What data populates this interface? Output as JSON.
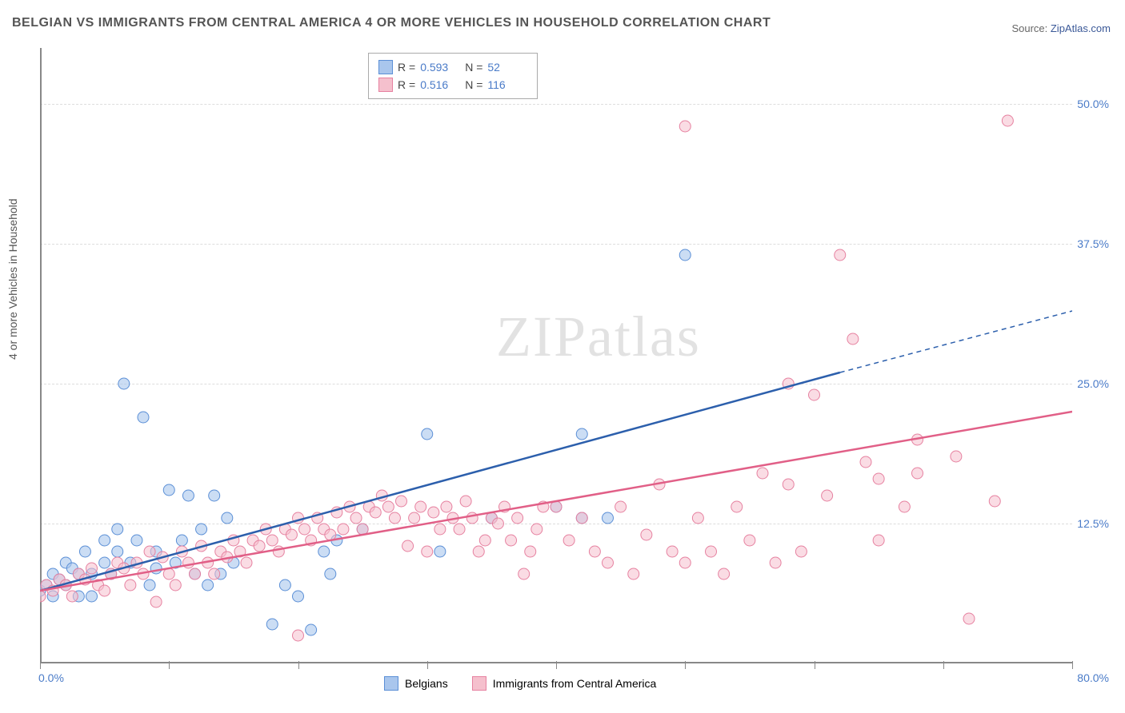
{
  "title": "BELGIAN VS IMMIGRANTS FROM CENTRAL AMERICA 4 OR MORE VEHICLES IN HOUSEHOLD CORRELATION CHART",
  "source_label": "Source: ",
  "source_name": "ZipAtlas.com",
  "y_axis_label": "4 or more Vehicles in Household",
  "watermark_zip": "ZIP",
  "watermark_atlas": "atlas",
  "chart": {
    "type": "scatter",
    "xlim": [
      0,
      80
    ],
    "ylim": [
      0,
      55
    ],
    "x_tick_min_label": "0.0%",
    "x_tick_max_label": "80.0%",
    "x_tick_positions": [
      0,
      10,
      20,
      30,
      40,
      50,
      60,
      70,
      80
    ],
    "y_ticks": [
      {
        "value": 12.5,
        "label": "12.5%"
      },
      {
        "value": 25.0,
        "label": "25.0%"
      },
      {
        "value": 37.5,
        "label": "37.5%"
      },
      {
        "value": 50.0,
        "label": "50.0%"
      }
    ],
    "background_color": "#ffffff",
    "grid_color": "#dddddd",
    "axis_color": "#888888",
    "tick_label_color": "#4a7bc8",
    "series": [
      {
        "name": "Belgians",
        "fill_color": "#a9c6ed",
        "stroke_color": "#5b8fd6",
        "line_color": "#2c5fac",
        "marker_radius": 7,
        "marker_opacity": 0.6,
        "r_value": "0.593",
        "n_value": "52",
        "trend": {
          "x1": 0,
          "y1": 6.5,
          "x2": 62,
          "y2": 26,
          "dash_x2": 80,
          "dash_y2": 31.5
        },
        "points": [
          [
            0,
            6.5
          ],
          [
            0.5,
            7
          ],
          [
            1,
            6
          ],
          [
            1,
            8
          ],
          [
            1.5,
            7.5
          ],
          [
            2,
            7
          ],
          [
            2,
            9
          ],
          [
            2.5,
            8.5
          ],
          [
            3,
            6
          ],
          [
            3,
            8
          ],
          [
            3.5,
            10
          ],
          [
            4,
            8
          ],
          [
            4,
            6
          ],
          [
            5,
            9
          ],
          [
            5,
            11
          ],
          [
            5.5,
            8
          ],
          [
            6,
            10
          ],
          [
            6,
            12
          ],
          [
            6.5,
            25
          ],
          [
            7,
            9
          ],
          [
            7.5,
            11
          ],
          [
            8,
            22
          ],
          [
            8.5,
            7
          ],
          [
            9,
            10
          ],
          [
            9,
            8.5
          ],
          [
            10,
            15.5
          ],
          [
            10.5,
            9
          ],
          [
            11,
            11
          ],
          [
            11.5,
            15
          ],
          [
            12,
            8
          ],
          [
            12.5,
            12
          ],
          [
            13,
            7
          ],
          [
            13.5,
            15
          ],
          [
            14,
            8
          ],
          [
            14.5,
            13
          ],
          [
            15,
            9
          ],
          [
            18,
            3.5
          ],
          [
            19,
            7
          ],
          [
            20,
            6
          ],
          [
            21,
            3
          ],
          [
            22,
            10
          ],
          [
            22.5,
            8
          ],
          [
            23,
            11
          ],
          [
            25,
            12
          ],
          [
            30,
            20.5
          ],
          [
            31,
            10
          ],
          [
            35,
            13
          ],
          [
            40,
            14
          ],
          [
            42,
            20.5
          ],
          [
            42,
            13
          ],
          [
            50,
            36.5
          ],
          [
            44,
            13
          ]
        ]
      },
      {
        "name": "Immigrants from Central America",
        "fill_color": "#f5c0cd",
        "stroke_color": "#e681a0",
        "line_color": "#e15f87",
        "marker_radius": 7,
        "marker_opacity": 0.55,
        "r_value": "0.516",
        "n_value": "116",
        "trend": {
          "x1": 0,
          "y1": 6.5,
          "x2": 80,
          "y2": 22.5
        },
        "points": [
          [
            0,
            6
          ],
          [
            0.5,
            7
          ],
          [
            1,
            6.5
          ],
          [
            1.5,
            7.5
          ],
          [
            2,
            7
          ],
          [
            2.5,
            6
          ],
          [
            3,
            8
          ],
          [
            3.5,
            7.5
          ],
          [
            4,
            8.5
          ],
          [
            4.5,
            7
          ],
          [
            5,
            6.5
          ],
          [
            5.5,
            8
          ],
          [
            6,
            9
          ],
          [
            6.5,
            8.5
          ],
          [
            7,
            7
          ],
          [
            7.5,
            9
          ],
          [
            8,
            8
          ],
          [
            8.5,
            10
          ],
          [
            9,
            5.5
          ],
          [
            9.5,
            9.5
          ],
          [
            10,
            8
          ],
          [
            10.5,
            7
          ],
          [
            11,
            10
          ],
          [
            11.5,
            9
          ],
          [
            12,
            8
          ],
          [
            12.5,
            10.5
          ],
          [
            13,
            9
          ],
          [
            13.5,
            8
          ],
          [
            14,
            10
          ],
          [
            14.5,
            9.5
          ],
          [
            15,
            11
          ],
          [
            15.5,
            10
          ],
          [
            16,
            9
          ],
          [
            16.5,
            11
          ],
          [
            17,
            10.5
          ],
          [
            17.5,
            12
          ],
          [
            18,
            11
          ],
          [
            18.5,
            10
          ],
          [
            19,
            12
          ],
          [
            19.5,
            11.5
          ],
          [
            20,
            13
          ],
          [
            20,
            2.5
          ],
          [
            20.5,
            12
          ],
          [
            21,
            11
          ],
          [
            21.5,
            13
          ],
          [
            22,
            12
          ],
          [
            22.5,
            11.5
          ],
          [
            23,
            13.5
          ],
          [
            23.5,
            12
          ],
          [
            24,
            14
          ],
          [
            24.5,
            13
          ],
          [
            25,
            12
          ],
          [
            25.5,
            14
          ],
          [
            26,
            13.5
          ],
          [
            26.5,
            15
          ],
          [
            27,
            14
          ],
          [
            27.5,
            13
          ],
          [
            28,
            14.5
          ],
          [
            28.5,
            10.5
          ],
          [
            29,
            13
          ],
          [
            29.5,
            14
          ],
          [
            30,
            10
          ],
          [
            30.5,
            13.5
          ],
          [
            31,
            12
          ],
          [
            31.5,
            14
          ],
          [
            32,
            13
          ],
          [
            32.5,
            12
          ],
          [
            33,
            14.5
          ],
          [
            33.5,
            13
          ],
          [
            34,
            10
          ],
          [
            34.5,
            11
          ],
          [
            35,
            13
          ],
          [
            35.5,
            12.5
          ],
          [
            36,
            14
          ],
          [
            36.5,
            11
          ],
          [
            37,
            13
          ],
          [
            37.5,
            8
          ],
          [
            38,
            10
          ],
          [
            38.5,
            12
          ],
          [
            39,
            14
          ],
          [
            40,
            14
          ],
          [
            41,
            11
          ],
          [
            42,
            13
          ],
          [
            43,
            10
          ],
          [
            44,
            9
          ],
          [
            45,
            14
          ],
          [
            46,
            8
          ],
          [
            47,
            11.5
          ],
          [
            48,
            16
          ],
          [
            49,
            10
          ],
          [
            50,
            9
          ],
          [
            50,
            48
          ],
          [
            51,
            13
          ],
          [
            52,
            10
          ],
          [
            53,
            8
          ],
          [
            54,
            14
          ],
          [
            55,
            11
          ],
          [
            56,
            17
          ],
          [
            57,
            9
          ],
          [
            58,
            16
          ],
          [
            58,
            25
          ],
          [
            59,
            10
          ],
          [
            60,
            24
          ],
          [
            61,
            15
          ],
          [
            62,
            36.5
          ],
          [
            63,
            29
          ],
          [
            64,
            18
          ],
          [
            65,
            16.5
          ],
          [
            67,
            14
          ],
          [
            68,
            20
          ],
          [
            68,
            17
          ],
          [
            71,
            18.5
          ],
          [
            72,
            4
          ],
          [
            74,
            14.5
          ],
          [
            75,
            48.5
          ],
          [
            65,
            11
          ]
        ]
      }
    ],
    "legend_labels": {
      "r_prefix": "R =",
      "n_prefix": "N ="
    }
  }
}
